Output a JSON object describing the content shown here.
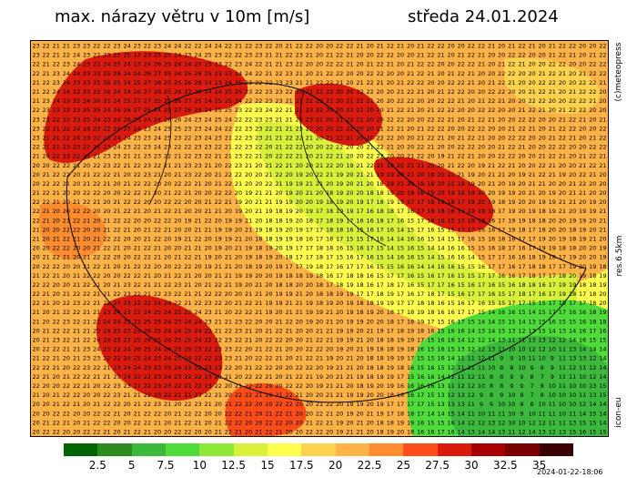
{
  "title": "max. nárazy větru v 10m [m/s]",
  "date": "středa 24.01.2024",
  "copyright": "(c)meteopress",
  "resolution": "res.6.5km",
  "model": "icon-eu",
  "timestamp": "2024-01-22-18:06",
  "legend": {
    "labels": [
      "2.5",
      "5",
      "7.5",
      "10",
      "12.5",
      "15",
      "17.5",
      "20",
      "22.5",
      "25",
      "27.5",
      "30",
      "32.5",
      "35"
    ],
    "colors": [
      "#006400",
      "#2e8b1f",
      "#3cb83c",
      "#4fdc3a",
      "#8ee83a",
      "#d9f03a",
      "#ffff4d",
      "#ffd24d",
      "#ffb347",
      "#ff8c2e",
      "#ff4d1a",
      "#d91a0d",
      "#a80000",
      "#780000",
      "#3a0000"
    ]
  },
  "map": {
    "background_value_color": "#ffb347",
    "zones": [
      {
        "name": "calm-southeast",
        "colors": [
          "#4fdc3a",
          "#3cb83c",
          "#8ee83a"
        ],
        "value_range": [
          5,
          12
        ]
      },
      {
        "name": "calm-south-center",
        "colors": [
          "#d9f03a",
          "#ffff4d"
        ],
        "value_range": [
          12,
          17
        ]
      },
      {
        "name": "strong-gust-belt",
        "colors": [
          "#d91a0d",
          "#ff4d1a"
        ],
        "value_range": [
          24,
          30
        ]
      }
    ]
  }
}
